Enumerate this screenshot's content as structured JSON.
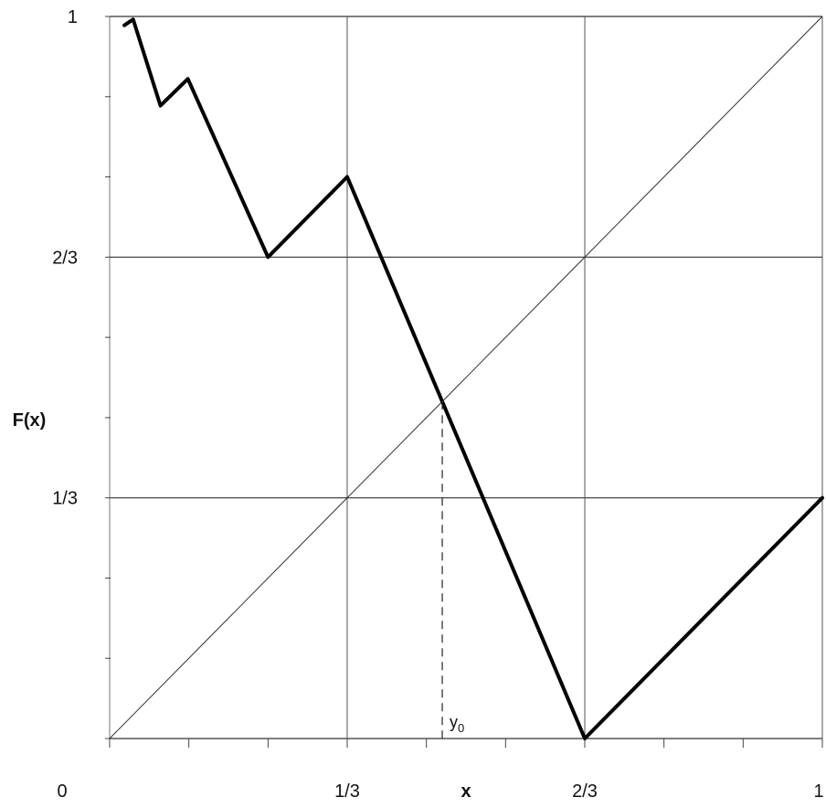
{
  "chart_data": {
    "type": "line",
    "title": "",
    "xlabel": "x",
    "ylabel": "F(x)",
    "xlim": [
      0,
      1
    ],
    "ylim": [
      0,
      1
    ],
    "grid": true,
    "x_ticks": [
      {
        "value": 0,
        "label": "0"
      },
      {
        "value": 0.3333,
        "label": "1/3"
      },
      {
        "value": 0.6667,
        "label": "2/3"
      },
      {
        "value": 1,
        "label": "1"
      }
    ],
    "y_ticks": [
      {
        "value": 0.3333,
        "label": "1/3"
      },
      {
        "value": 0.6667,
        "label": "2/3"
      },
      {
        "value": 1,
        "label": "1"
      }
    ],
    "series": [
      {
        "style": "thick-black",
        "x": [
          0.0206,
          0.0329,
          0.0713,
          0.1097,
          0.2222,
          0.3333,
          0.6667,
          1.0
        ],
        "y": [
          0.9877,
          0.9959,
          0.8765,
          0.9136,
          0.6667,
          0.7778,
          0.0,
          0.3333
        ]
      },
      {
        "style": "thin-diagonal",
        "x": [
          0,
          1
        ],
        "y": [
          0,
          1
        ]
      }
    ],
    "annotations": [
      {
        "text": "y",
        "subscript": "0",
        "x": 0.4667,
        "y": 0.4667
      }
    ]
  }
}
